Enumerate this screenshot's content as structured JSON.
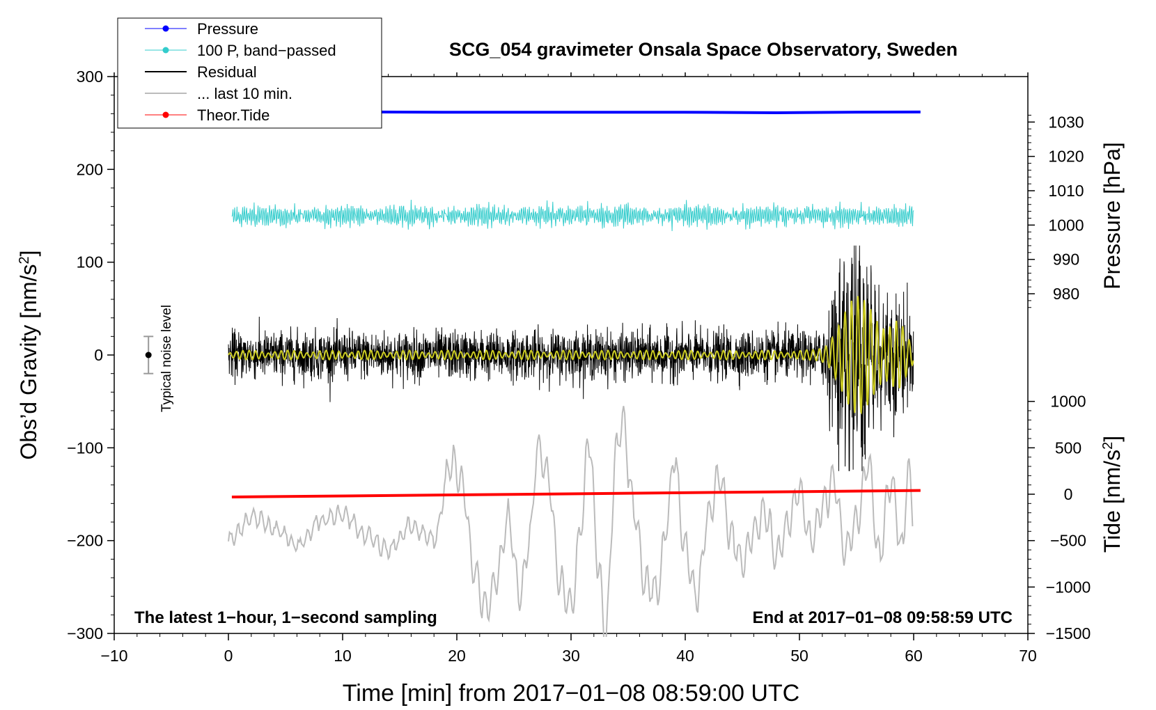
{
  "chart_data": {
    "type": "line",
    "title": "SCG_054 gravimeter Onsala Space Observatory, Sweden",
    "xlabel": "Time [min] from 2017−01−08 08:59:00 UTC",
    "ylabel_left": "Obs’d Gravity [nm/s",
    "ylabel_left_sup": "2",
    "ylabel_left_close": "]",
    "ylabel_pressure": "Pressure [hPa]",
    "ylabel_tide": "Tide [nm/s",
    "ylabel_tide_sup": "2",
    "ylabel_tide_close": "]",
    "xlim": [
      -10,
      70
    ],
    "ylim": [
      -300,
      300
    ],
    "x_ticks": [
      "−10",
      "0",
      "10",
      "20",
      "30",
      "40",
      "50",
      "60",
      "70"
    ],
    "x_tick_values": [
      -10,
      0,
      10,
      20,
      30,
      40,
      50,
      60,
      70
    ],
    "y_ticks": [
      "−300",
      "−200",
      "−100",
      "0",
      "100",
      "200",
      "300"
    ],
    "y_tick_values": [
      -300,
      -200,
      -100,
      0,
      100,
      200,
      300
    ],
    "pressure_axis": {
      "ticks": [
        "980",
        "990",
        "1000",
        "1010",
        "1020",
        "1030"
      ],
      "tick_values": [
        980,
        990,
        1000,
        1010,
        1020,
        1030
      ],
      "gravity_at_1000": 140,
      "gravity_per_hPa": 3.7
    },
    "tide_axis": {
      "ticks": [
        "−1500",
        "−1000",
        "−500",
        "0",
        "500",
        "1000"
      ],
      "tick_values": [
        -1500,
        -1000,
        -500,
        0,
        500,
        1000
      ],
      "gravity_at_0": -150,
      "gravity_per_unit": 0.1
    },
    "legend": {
      "position": "top-left",
      "entries": [
        {
          "label": "Pressure",
          "color": "#0000ff",
          "marker": true
        },
        {
          "label": "100 P, band−passed",
          "color": "#33cccc",
          "marker": true
        },
        {
          "label": "Residual",
          "color": "#000000",
          "marker": false
        },
        {
          "label": "... last 10 min.",
          "color": "#bbbbbb",
          "marker": false
        },
        {
          "label": "Theor.Tide",
          "color": "#ff0000",
          "marker": true
        }
      ]
    },
    "noise_indicator": {
      "label": "Typical noise level",
      "x": -7,
      "center": 0,
      "half_range": 20
    },
    "footer_left": "The latest 1−hour, 1−second sampling",
    "footer_right": "End at 2017−01−08 09:58:59 UTC",
    "series": [
      {
        "name": "Pressure",
        "color": "#0000ff",
        "x_range": [
          0.3,
          60.6
        ],
        "y_approx": 262,
        "points": [
          [
            0.3,
            262
          ],
          [
            10,
            262
          ],
          [
            20,
            261.5
          ],
          [
            30,
            261.5
          ],
          [
            40,
            261.6
          ],
          [
            48,
            261
          ],
          [
            55,
            261.7
          ],
          [
            60.6,
            261.8
          ]
        ]
      },
      {
        "name": "100 P, band−passed",
        "color": "#33cccc",
        "x_range": [
          0.3,
          60
        ],
        "y_center": 150,
        "amplitude_approx": 12
      },
      {
        "name": "Residual",
        "color": "#000000",
        "x_range": [
          0,
          60
        ],
        "y_center": 0,
        "amplitude_approx": 40,
        "peak_amplitude_approx": 115,
        "peak_window": [
          52,
          60
        ]
      },
      {
        "name": "Residual filtered",
        "color": "#cccc22",
        "x_range": [
          0,
          60
        ],
        "y_center": 0,
        "peak_amplitude_approx": 75,
        "peak_window": [
          52,
          60
        ]
      },
      {
        "name": "... last 10 min.",
        "color": "#bbbbbb",
        "x_range": [
          0,
          60
        ],
        "y_range_approx": [
          -310,
          -65
        ],
        "points": [
          [
            0,
            -200
          ],
          [
            2,
            -175
          ],
          [
            4,
            -185
          ],
          [
            6,
            -205
          ],
          [
            8,
            -180
          ],
          [
            10,
            -170
          ],
          [
            12,
            -195
          ],
          [
            14,
            -210
          ],
          [
            16,
            -185
          ],
          [
            18,
            -200
          ],
          [
            19.5,
            -115
          ],
          [
            20.5,
            -140
          ],
          [
            21.5,
            -230
          ],
          [
            22.5,
            -275
          ],
          [
            23.5,
            -240
          ],
          [
            24.5,
            -175
          ],
          [
            25.5,
            -260
          ],
          [
            26.5,
            -190
          ],
          [
            27,
            -100
          ],
          [
            28,
            -130
          ],
          [
            29,
            -245
          ],
          [
            30,
            -270
          ],
          [
            31,
            -175
          ],
          [
            31.5,
            -85
          ],
          [
            32.5,
            -235
          ],
          [
            33,
            -305
          ],
          [
            34,
            -100
          ],
          [
            34.5,
            -70
          ],
          [
            35.5,
            -165
          ],
          [
            36.5,
            -245
          ],
          [
            37.5,
            -255
          ],
          [
            38.5,
            -175
          ],
          [
            39,
            -110
          ],
          [
            40,
            -210
          ],
          [
            41,
            -260
          ],
          [
            42,
            -175
          ],
          [
            43,
            -130
          ],
          [
            44,
            -195
          ],
          [
            45,
            -225
          ],
          [
            46,
            -190
          ],
          [
            47,
            -170
          ],
          [
            48,
            -215
          ],
          [
            49,
            -180
          ],
          [
            50,
            -145
          ],
          [
            51,
            -200
          ],
          [
            52,
            -165
          ],
          [
            53,
            -135
          ],
          [
            54,
            -210
          ],
          [
            55,
            -180
          ],
          [
            56,
            -115
          ],
          [
            57,
            -215
          ],
          [
            58,
            -135
          ],
          [
            59,
            -210
          ],
          [
            59.5,
            -125
          ],
          [
            60,
            -170
          ]
        ]
      },
      {
        "name": "Theor.Tide",
        "color": "#ff0000",
        "points": [
          [
            0.3,
            -153
          ],
          [
            60.6,
            -146
          ]
        ]
      }
    ]
  }
}
